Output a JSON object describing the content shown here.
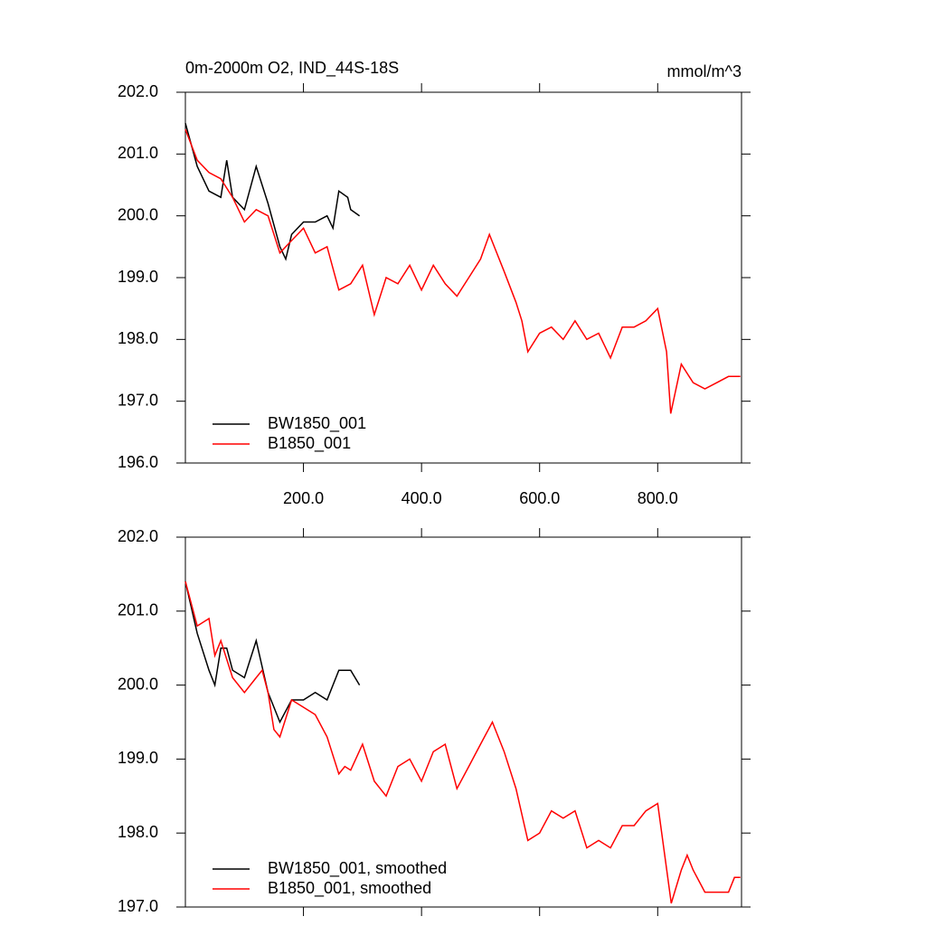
{
  "chart_data": [
    {
      "type": "line",
      "title": "0m-2000m O2, IND_44S-18S",
      "units": "mmol/m^3",
      "xlim": [
        0,
        942
      ],
      "ylim": [
        196,
        202
      ],
      "xticks": [
        {
          "value": 200,
          "label": "200.0"
        },
        {
          "value": 400,
          "label": "400.0"
        },
        {
          "value": 600,
          "label": "600.0"
        },
        {
          "value": 800,
          "label": "800.0"
        }
      ],
      "yticks": [
        {
          "value": 196,
          "label": "196.0"
        },
        {
          "value": 197,
          "label": "197.0"
        },
        {
          "value": 198,
          "label": "198.0"
        },
        {
          "value": 199,
          "label": "199.0"
        },
        {
          "value": 200,
          "label": "200.0"
        },
        {
          "value": 201,
          "label": "201.0"
        },
        {
          "value": 202,
          "label": "202.0"
        }
      ],
      "series": [
        {
          "name": "BW1850_001",
          "color": "#000000",
          "x": [
            0,
            20,
            40,
            60,
            70,
            80,
            100,
            120,
            140,
            160,
            170,
            180,
            200,
            220,
            240,
            250,
            260,
            275,
            280,
            295
          ],
          "values": [
            201.5,
            200.8,
            200.4,
            200.3,
            200.9,
            200.3,
            200.1,
            200.8,
            200.2,
            199.5,
            199.3,
            199.7,
            199.9,
            199.9,
            200.0,
            199.8,
            200.4,
            200.3,
            200.1,
            200.0
          ]
        },
        {
          "name": "B1850_001",
          "color": "#ff0000",
          "x": [
            0,
            20,
            40,
            60,
            80,
            100,
            120,
            140,
            160,
            180,
            200,
            220,
            240,
            260,
            280,
            300,
            320,
            340,
            360,
            380,
            400,
            420,
            440,
            460,
            480,
            500,
            515,
            540,
            560,
            570,
            580,
            600,
            620,
            640,
            660,
            680,
            700,
            720,
            740,
            760,
            780,
            800,
            815,
            822,
            840,
            860,
            880,
            900,
            920,
            940
          ],
          "values": [
            201.4,
            200.9,
            200.7,
            200.6,
            200.3,
            199.9,
            200.1,
            200.0,
            199.4,
            199.6,
            199.8,
            199.4,
            199.5,
            198.8,
            198.9,
            199.2,
            198.4,
            199.0,
            198.9,
            199.2,
            198.8,
            199.2,
            198.9,
            198.7,
            199.0,
            199.3,
            199.7,
            199.1,
            198.6,
            198.3,
            197.8,
            198.1,
            198.2,
            198.0,
            198.3,
            198.0,
            198.1,
            197.7,
            198.2,
            198.2,
            198.3,
            198.5,
            197.8,
            196.8,
            197.6,
            197.3,
            197.2,
            197.3,
            197.4,
            197.4
          ]
        }
      ]
    },
    {
      "type": "line",
      "xlim": [
        0,
        942
      ],
      "ylim": [
        197,
        202
      ],
      "xticks": [
        200,
        400,
        600,
        800
      ],
      "yticks": [
        {
          "value": 197,
          "label": "197.0"
        },
        {
          "value": 198,
          "label": "198.0"
        },
        {
          "value": 199,
          "label": "199.0"
        },
        {
          "value": 200,
          "label": "200.0"
        },
        {
          "value": 201,
          "label": "201.0"
        },
        {
          "value": 202,
          "label": "202.0"
        }
      ],
      "series": [
        {
          "name": "BW1850_001, smoothed",
          "color": "#000000",
          "x": [
            0,
            20,
            40,
            50,
            60,
            70,
            80,
            100,
            120,
            140,
            160,
            180,
            200,
            220,
            240,
            260,
            280,
            295
          ],
          "values": [
            201.4,
            200.7,
            200.2,
            200.0,
            200.5,
            200.5,
            200.2,
            200.1,
            200.6,
            199.9,
            199.5,
            199.8,
            199.8,
            199.9,
            199.8,
            200.2,
            200.2,
            200.0
          ]
        },
        {
          "name": "B1850_001, smoothed",
          "color": "#ff0000",
          "x": [
            0,
            20,
            40,
            50,
            60,
            80,
            100,
            120,
            130,
            140,
            150,
            160,
            180,
            200,
            220,
            240,
            260,
            270,
            280,
            300,
            320,
            340,
            360,
            380,
            400,
            420,
            440,
            460,
            480,
            500,
            520,
            540,
            560,
            580,
            600,
            620,
            640,
            660,
            680,
            700,
            720,
            740,
            760,
            780,
            800,
            823,
            840,
            850,
            860,
            880,
            900,
            920,
            930,
            940
          ],
          "values": [
            201.4,
            200.8,
            200.9,
            200.4,
            200.6,
            200.1,
            199.9,
            200.1,
            200.2,
            199.9,
            199.4,
            199.3,
            199.8,
            199.7,
            199.6,
            199.3,
            198.8,
            198.9,
            198.85,
            199.2,
            198.7,
            198.5,
            198.9,
            199.0,
            198.7,
            199.1,
            199.2,
            198.6,
            198.9,
            199.2,
            199.5,
            199.1,
            198.6,
            197.9,
            198.0,
            198.3,
            198.2,
            198.3,
            197.8,
            197.9,
            197.8,
            198.1,
            198.1,
            198.3,
            198.4,
            197.05,
            197.5,
            197.7,
            197.5,
            197.2,
            197.2,
            197.2,
            197.4,
            197.4
          ]
        }
      ]
    }
  ]
}
